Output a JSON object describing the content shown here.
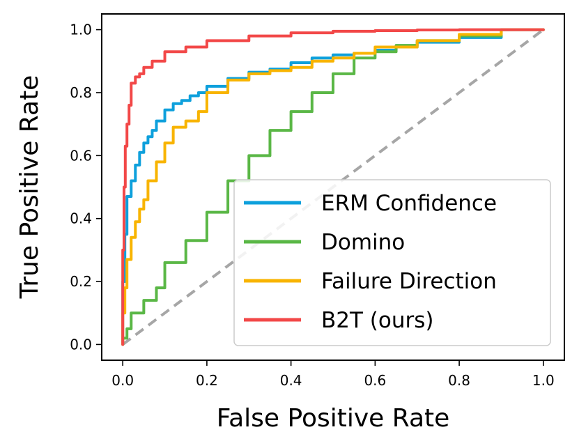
{
  "chart_data": {
    "type": "line",
    "title": "",
    "xlabel": "False Positive Rate",
    "ylabel": "True Positive Rate",
    "xlim": [
      -0.05,
      1.05
    ],
    "ylim": [
      -0.05,
      1.05
    ],
    "xticks": [
      0.0,
      0.2,
      0.4,
      0.6,
      0.8,
      1.0
    ],
    "yticks": [
      0.0,
      0.2,
      0.4,
      0.6,
      0.8,
      1.0
    ],
    "xtick_labels": [
      "0.0",
      "0.2",
      "0.4",
      "0.6",
      "0.8",
      "1.0"
    ],
    "ytick_labels": [
      "0.0",
      "0.2",
      "0.4",
      "0.6",
      "0.8",
      "1.0"
    ],
    "grid": false,
    "legend_position": "lower-right",
    "reference_line": {
      "x": [
        0,
        1
      ],
      "y": [
        0,
        1
      ],
      "color": "#a6a6a6",
      "style": "dashed"
    },
    "series": [
      {
        "name": "ERM Confidence",
        "color": "#0ea0dc",
        "x": [
          0,
          0.005,
          0.01,
          0.02,
          0.03,
          0.04,
          0.05,
          0.06,
          0.07,
          0.08,
          0.1,
          0.12,
          0.14,
          0.16,
          0.18,
          0.2,
          0.25,
          0.3,
          0.35,
          0.4,
          0.45,
          0.5,
          0.55,
          0.6,
          0.65,
          0.7,
          0.8,
          0.9,
          1.0
        ],
        "y": [
          0,
          0.2,
          0.35,
          0.47,
          0.52,
          0.57,
          0.61,
          0.64,
          0.66,
          0.68,
          0.71,
          0.745,
          0.765,
          0.775,
          0.79,
          0.8,
          0.82,
          0.845,
          0.865,
          0.875,
          0.895,
          0.91,
          0.92,
          0.925,
          0.935,
          0.945,
          0.96,
          0.975,
          1.0
        ]
      },
      {
        "name": "Domino",
        "color": "#5ab746",
        "x": [
          0,
          0.01,
          0.02,
          0.05,
          0.08,
          0.1,
          0.15,
          0.2,
          0.25,
          0.3,
          0.35,
          0.4,
          0.45,
          0.5,
          0.55,
          0.6,
          0.65,
          0.7,
          0.8,
          0.9,
          1.0
        ],
        "y": [
          0,
          0.02,
          0.05,
          0.1,
          0.14,
          0.18,
          0.26,
          0.33,
          0.42,
          0.52,
          0.6,
          0.68,
          0.74,
          0.8,
          0.86,
          0.91,
          0.93,
          0.95,
          0.965,
          0.98,
          1.0
        ]
      },
      {
        "name": "Failure Direction",
        "color": "#f8b400",
        "x": [
          0,
          0.005,
          0.01,
          0.02,
          0.03,
          0.04,
          0.05,
          0.06,
          0.08,
          0.1,
          0.12,
          0.15,
          0.18,
          0.2,
          0.25,
          0.3,
          0.35,
          0.4,
          0.45,
          0.5,
          0.55,
          0.6,
          0.7,
          0.8,
          0.9,
          1.0
        ],
        "y": [
          0,
          0.1,
          0.18,
          0.27,
          0.34,
          0.39,
          0.43,
          0.46,
          0.52,
          0.58,
          0.64,
          0.69,
          0.71,
          0.74,
          0.8,
          0.84,
          0.86,
          0.87,
          0.88,
          0.9,
          0.91,
          0.925,
          0.945,
          0.965,
          0.985,
          1.0
        ]
      },
      {
        "name": "B2T (ours)",
        "color": "#f24848",
        "x": [
          0,
          0.003,
          0.006,
          0.01,
          0.015,
          0.02,
          0.03,
          0.04,
          0.05,
          0.07,
          0.1,
          0.15,
          0.2,
          0.3,
          0.4,
          0.5,
          0.6,
          0.7,
          0.8,
          0.9,
          1.0
        ],
        "y": [
          0,
          0.3,
          0.5,
          0.63,
          0.7,
          0.76,
          0.83,
          0.85,
          0.86,
          0.88,
          0.9,
          0.93,
          0.945,
          0.965,
          0.98,
          0.99,
          0.995,
          0.997,
          0.999,
          1.0,
          1.0
        ]
      }
    ]
  }
}
